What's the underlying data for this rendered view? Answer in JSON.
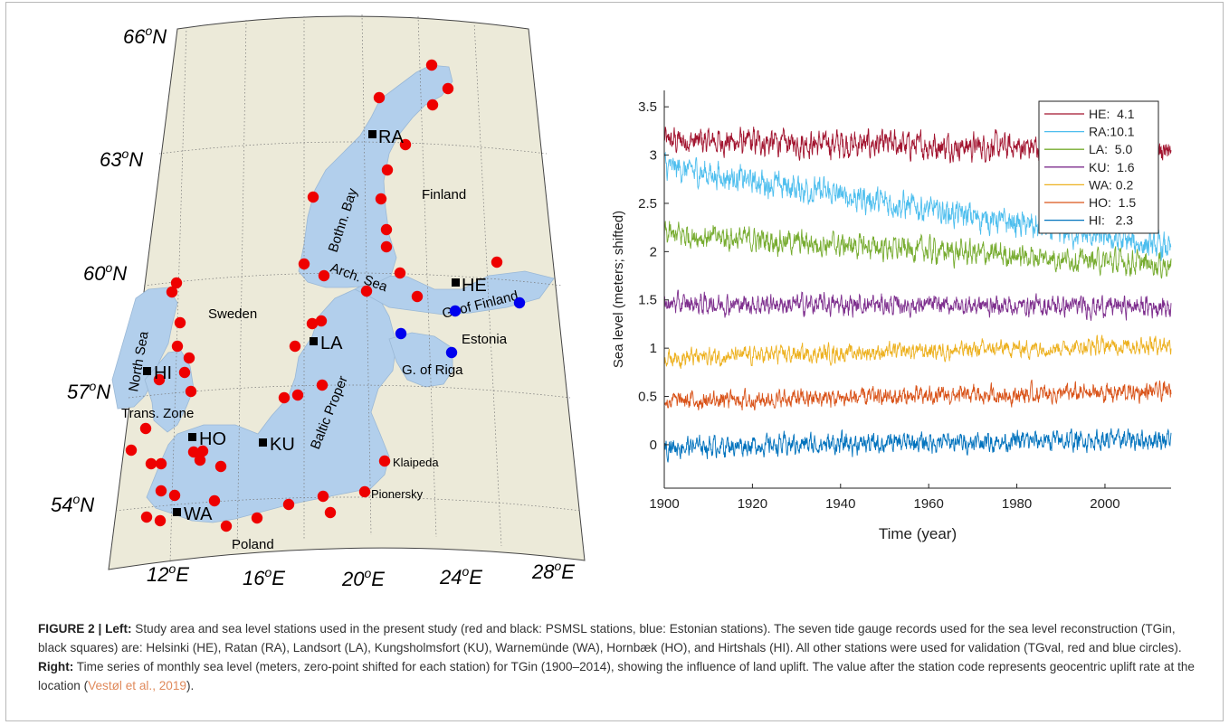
{
  "map": {
    "lat_labels": [
      {
        "deg": "66",
        "suffix": "N",
        "name": "lat-66-label"
      },
      {
        "deg": "63",
        "suffix": "N",
        "name": "lat-63-label"
      },
      {
        "deg": "60",
        "suffix": "N",
        "name": "lat-60-label"
      },
      {
        "deg": "57",
        "suffix": "N",
        "name": "lat-57-label"
      },
      {
        "deg": "54",
        "suffix": "N",
        "name": "lat-54-label"
      }
    ],
    "lon_labels": [
      {
        "deg": "12",
        "suffix": "E",
        "name": "lon-12-label"
      },
      {
        "deg": "16",
        "suffix": "E",
        "name": "lon-16-label"
      },
      {
        "deg": "20",
        "suffix": "E",
        "name": "lon-20-label"
      },
      {
        "deg": "24",
        "suffix": "E",
        "name": "lon-24-label"
      },
      {
        "deg": "28",
        "suffix": "E",
        "name": "lon-28-label"
      }
    ],
    "degree_symbol": "o",
    "region_labels": {
      "finland": "Finland",
      "sweden": "Sweden",
      "estonia": "Estonia",
      "poland": "Poland",
      "bothnian_bay": "Bothn. Bay",
      "arch_sea": "Arch. Sea",
      "gulf_finland": "G. of Finland",
      "gulf_riga": "G. of Riga",
      "baltic_proper": "Baltic Proper",
      "north_sea": "North Sea",
      "trans_zone": "Trans. Zone",
      "klaipeda": "Klaipeda",
      "pionersky": "Pionersky"
    },
    "tgin_stations": [
      "RA",
      "HE",
      "LA",
      "HI",
      "HO",
      "KU",
      "WA"
    ],
    "colors": {
      "land": "#ecead9",
      "sea": "#b2cfec",
      "tgin": "#000000",
      "psmsl_val": "#ee0000",
      "estonian_val": "#0000ee"
    }
  },
  "chart_data": {
    "type": "line",
    "ylabel": "Sea level (meters; shifted)",
    "xlabel": "Time (year)",
    "xlim": [
      1900,
      2015
    ],
    "ylim": [
      -0.45,
      3.67
    ],
    "xticks": [
      "1900",
      "1920",
      "1940",
      "1960",
      "1980",
      "2000"
    ],
    "yticks": [
      "0",
      "0.5",
      "1",
      "1.5",
      "2",
      "2.5",
      "3",
      "3.5"
    ],
    "grid": false,
    "legend_position": "top-right",
    "series": [
      {
        "name": "HE:  4.1",
        "color": "#a2142f",
        "base": 3.15,
        "trend": -0.1,
        "amp": 0.17
      },
      {
        "name": "RA:10.1",
        "color": "#4dbeee",
        "base": 2.88,
        "trend": -0.85,
        "amp": 0.17
      },
      {
        "name": "LA:  5.0",
        "color": "#77ac30",
        "base": 2.18,
        "trend": -0.32,
        "amp": 0.15
      },
      {
        "name": "KU:  1.6",
        "color": "#7e2f8e",
        "base": 1.46,
        "trend": -0.03,
        "amp": 0.13
      },
      {
        "name": "WA: 0.2",
        "color": "#edb120",
        "base": 0.9,
        "trend": 0.14,
        "amp": 0.11
      },
      {
        "name": "HO:  1.5",
        "color": "#d95319",
        "base": 0.45,
        "trend": 0.1,
        "amp": 0.12
      },
      {
        "name": "HI:   2.3",
        "color": "#0072bd",
        "base": -0.02,
        "trend": 0.08,
        "amp": 0.13
      }
    ]
  },
  "caption": {
    "label": "FIGURE 2 |",
    "left_head": "Left:",
    "left_text": " Study area and sea level stations used in the present study (red and black: PSMSL stations, blue: Estonian stations). The seven tide gauge records used for the sea level reconstruction (TGin, black squares) are: Helsinki (HE), Ratan (RA), Landsort (LA), Kungsholmsfort (KU), Warnemünde (WA), Hornbæk (HO), and Hirtshals (HI). All other stations were used for validation (TGval, red and blue circles). ",
    "right_head": "Right:",
    "right_text": " Time series of monthly sea level (meters, zero-point shifted for each station) for TGin (1900–2014), showing the influence of land uplift. The value after the station code represents geocentric uplift rate at the location (",
    "citation": "Vestøl et al., 2019",
    "tail": ")."
  }
}
